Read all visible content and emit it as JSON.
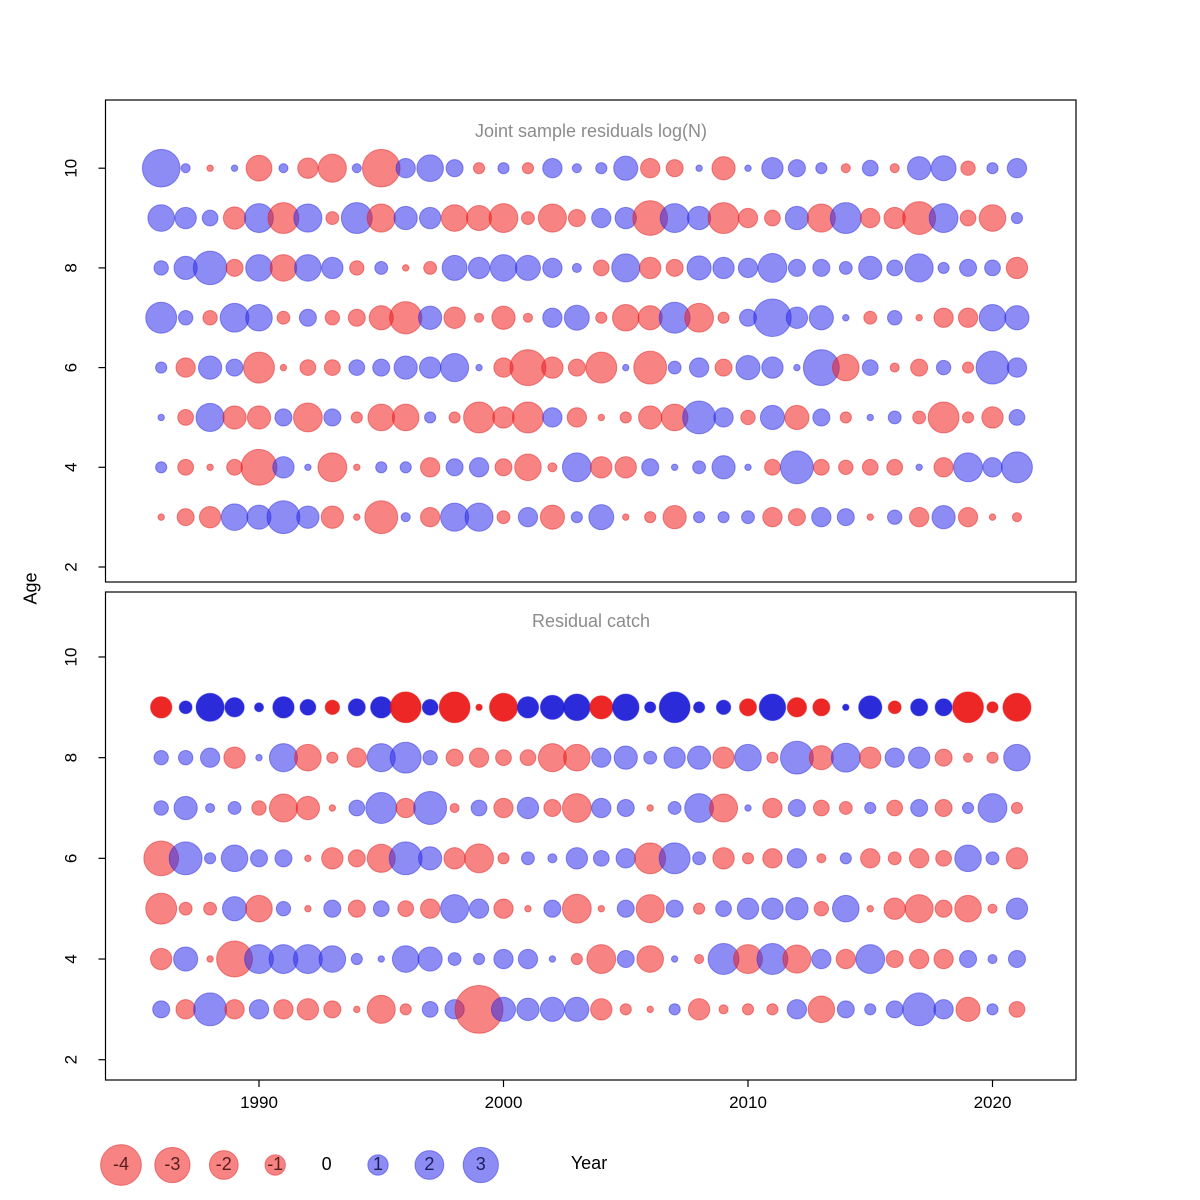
{
  "chart_data": {
    "type": "bubble",
    "description": "Two-panel residual bubble plot by year and age; red = negative residual, blue = positive residual, bubble area proportional to |value|",
    "axes": {
      "xlabel": "Year",
      "ylabel": "Age",
      "x_ticks": [
        1990,
        2000,
        2010,
        2020
      ],
      "y_ticks": [
        2,
        4,
        6,
        8,
        10
      ],
      "xlim": [
        1983.7,
        2023.3
      ],
      "ylim": [
        1.7,
        10.7
      ],
      "grid": false
    },
    "colors": {
      "negative": "rgba(240,30,30,0.55)",
      "positive": "rgba(45,45,235,0.55)",
      "negative_stroke": "rgba(220,20,20,0.45)",
      "positive_stroke": "rgba(30,30,220,0.45)",
      "negative_strong": "rgba(235,20,20,0.92)",
      "positive_strong": "rgba(25,25,215,0.92)",
      "title": "#8c8c8c"
    },
    "legend": {
      "values": [
        -4,
        -3,
        -2,
        -1,
        0,
        1,
        2,
        3
      ],
      "negative_label_color": "#5a1d1d",
      "positive_label_color": "#1d1d5a",
      "zero_label_color": "#000000"
    },
    "panels": [
      {
        "id": "logn",
        "title": "Joint sample residuals log(N)",
        "year_start": 1986,
        "strong_ages": [],
        "series": [
          {
            "age": 10,
            "values": [
              3.4,
              0.2,
              -0.1,
              0.1,
              -1.6,
              0.2,
              -1.0,
              -1.9,
              0.2,
              -3.4,
              0.9,
              1.7,
              0.7,
              -0.3,
              0.3,
              -0.3,
              0.9,
              0.2,
              0.3,
              1.4,
              -0.9,
              -0.7,
              0.1,
              -1.3,
              0.1,
              1.1,
              0.7,
              0.3,
              -0.2,
              0.6,
              -0.2,
              1.3,
              1.5,
              -0.5,
              0.3,
              0.9
            ]
          },
          {
            "age": 9,
            "values": [
              1.7,
              1.1,
              0.6,
              -1.2,
              2.0,
              -2.3,
              1.9,
              -0.4,
              2.3,
              -1.9,
              1.3,
              1.1,
              -1.7,
              -1.5,
              -2.0,
              -0.4,
              -1.9,
              -0.7,
              0.9,
              1.1,
              -2.9,
              2.0,
              1.3,
              -2.3,
              -0.9,
              -0.6,
              1.3,
              -1.9,
              2.3,
              -0.9,
              -1.1,
              -2.6,
              2.0,
              -0.6,
              -1.7,
              0.3
            ]
          },
          {
            "age": 8,
            "values": [
              0.5,
              1.3,
              2.7,
              -0.7,
              1.7,
              -1.7,
              1.7,
              1.1,
              -0.5,
              0.4,
              -0.1,
              -0.4,
              1.5,
              1.1,
              1.7,
              1.5,
              0.9,
              0.2,
              -0.6,
              1.9,
              -1.1,
              -0.7,
              1.4,
              1.1,
              0.9,
              2.0,
              0.7,
              0.7,
              0.4,
              1.3,
              0.6,
              1.9,
              0.3,
              0.7,
              0.6,
              -1.1
            ]
          },
          {
            "age": 7,
            "values": [
              2.3,
              0.5,
              -0.5,
              2.0,
              1.7,
              -0.4,
              0.7,
              -0.5,
              -0.7,
              -1.4,
              -2.5,
              1.3,
              -1.1,
              -0.2,
              -1.3,
              -0.2,
              0.9,
              1.5,
              -0.3,
              -1.7,
              -1.4,
              2.3,
              -2.0,
              -0.3,
              0.7,
              3.4,
              1.1,
              1.4,
              0.1,
              -0.4,
              0.5,
              -0.1,
              -0.9,
              -0.9,
              1.7,
              1.4
            ]
          },
          {
            "age": 6,
            "values": [
              0.3,
              -0.9,
              1.3,
              0.7,
              -2.3,
              -0.1,
              -0.6,
              -0.6,
              0.6,
              0.7,
              1.3,
              1.1,
              1.9,
              0.1,
              -0.9,
              -3.1,
              -1.1,
              -0.7,
              -2.3,
              0.1,
              -2.6,
              0.4,
              0.9,
              -0.7,
              1.4,
              1.1,
              0.1,
              3.1,
              -1.7,
              0.6,
              -0.2,
              -0.7,
              0.5,
              -0.3,
              2.6,
              0.9
            ]
          },
          {
            "age": 5,
            "values": [
              0.1,
              -0.6,
              1.9,
              -1.3,
              -1.3,
              0.7,
              -2.0,
              0.7,
              -0.3,
              -1.7,
              -1.7,
              0.3,
              -0.3,
              -2.3,
              -1.1,
              -2.3,
              0.9,
              -0.9,
              -0.1,
              -0.3,
              -1.3,
              -1.7,
              2.6,
              0.9,
              -0.5,
              1.4,
              -1.4,
              0.7,
              -0.3,
              0.1,
              0.4,
              -0.4,
              -2.3,
              -0.3,
              -1.1,
              0.6
            ]
          },
          {
            "age": 4,
            "values": [
              0.3,
              -0.6,
              -0.1,
              -0.6,
              -3.1,
              1.1,
              0.1,
              -2.0,
              -0.1,
              0.3,
              0.3,
              -0.9,
              0.7,
              0.9,
              -0.7,
              -1.7,
              -0.2,
              2.0,
              -1.1,
              -1.1,
              0.7,
              0.1,
              0.4,
              1.3,
              0.1,
              -0.6,
              2.6,
              -0.6,
              -0.5,
              -0.6,
              -0.6,
              0.1,
              -0.9,
              2.0,
              0.9,
              2.3
            ]
          },
          {
            "age": 3,
            "values": [
              -0.1,
              -0.7,
              -1.1,
              1.7,
              1.4,
              2.6,
              1.2,
              -1.2,
              -0.1,
              -2.6,
              0.2,
              -0.9,
              1.9,
              1.9,
              -0.4,
              0.9,
              -1.4,
              0.3,
              1.5,
              -0.1,
              -0.3,
              -1.3,
              0.3,
              0.3,
              0.4,
              -0.9,
              -0.7,
              0.9,
              0.7,
              -0.1,
              0.5,
              -0.9,
              1.3,
              -0.9,
              -0.1,
              -0.2
            ]
          }
        ]
      },
      {
        "id": "catch",
        "title": "Residual catch",
        "year_start": 1986,
        "strong_ages": [
          9
        ],
        "series": [
          {
            "age": 9,
            "values": [
              -1.1,
              0.4,
              1.9,
              0.9,
              0.2,
              1.1,
              0.6,
              -0.5,
              0.7,
              1.1,
              -2.3,
              0.6,
              -2.3,
              -0.1,
              -1.9,
              1.1,
              1.4,
              1.7,
              -1.3,
              1.7,
              0.3,
              2.3,
              0.3,
              0.5,
              -0.7,
              1.7,
              -0.9,
              -0.7,
              0.1,
              1.3,
              -0.4,
              0.7,
              0.7,
              -2.3,
              -0.3,
              -1.9
            ]
          },
          {
            "age": 8,
            "values": [
              0.5,
              0.5,
              0.9,
              -1.1,
              0.1,
              1.9,
              -1.7,
              -0.3,
              -0.9,
              1.9,
              2.3,
              0.5,
              -0.7,
              -0.9,
              -0.6,
              -0.6,
              -1.9,
              -1.7,
              0.9,
              1.3,
              0.4,
              1.1,
              1.3,
              -1.1,
              1.7,
              -0.3,
              2.6,
              -1.4,
              2.0,
              -1.1,
              0.9,
              1.1,
              -0.7,
              -0.2,
              -0.3,
              1.7
            ]
          },
          {
            "age": 7,
            "values": [
              0.5,
              1.3,
              0.2,
              0.4,
              -0.5,
              -1.9,
              -1.3,
              -0.1,
              0.6,
              2.3,
              -0.9,
              2.6,
              -0.2,
              0.6,
              -0.9,
              1.1,
              -0.7,
              -2.0,
              0.9,
              0.7,
              -0.1,
              0.4,
              2.0,
              -1.9,
              0.1,
              -0.9,
              0.7,
              -0.6,
              -0.4,
              0.3,
              -0.6,
              0.7,
              -0.7,
              0.3,
              2.0,
              -0.3
            ]
          },
          {
            "age": 6,
            "values": [
              -2.9,
              2.6,
              0.3,
              1.7,
              0.7,
              0.7,
              -0.1,
              -1.1,
              -0.7,
              -1.9,
              2.6,
              1.3,
              -1.1,
              -2.0,
              -0.3,
              0.4,
              0.2,
              1.1,
              0.6,
              0.9,
              -2.3,
              2.3,
              0.4,
              -1.1,
              -0.3,
              -0.9,
              0.9,
              -0.2,
              0.3,
              -0.9,
              -0.4,
              -0.9,
              -0.6,
              1.7,
              0.4,
              -1.1
            ]
          },
          {
            "age": 5,
            "values": [
              -2.3,
              -0.4,
              -0.4,
              1.4,
              -1.7,
              0.5,
              -0.1,
              0.7,
              -0.7,
              0.6,
              -0.6,
              -0.9,
              1.9,
              0.9,
              -0.9,
              -0.1,
              0.7,
              -2.0,
              -0.1,
              0.7,
              -1.9,
              0.7,
              -0.3,
              0.6,
              1.1,
              1.1,
              1.2,
              -0.5,
              1.7,
              -0.1,
              -1.1,
              -1.9,
              -0.7,
              -1.7,
              -0.2,
              1.1
            ]
          },
          {
            "age": 4,
            "values": [
              -1.1,
              1.4,
              -0.1,
              -3.1,
              2.0,
              2.0,
              2.0,
              1.7,
              0.3,
              0.1,
              1.7,
              1.4,
              0.4,
              0.3,
              0.9,
              0.9,
              0.1,
              -0.3,
              -2.0,
              0.7,
              -1.7,
              0.1,
              -0.2,
              2.3,
              -2.0,
              2.3,
              -1.9,
              0.9,
              -0.9,
              2.0,
              -0.7,
              -0.9,
              -0.9,
              0.7,
              0.2,
              0.7
            ]
          },
          {
            "age": 3,
            "values": [
              0.7,
              -0.9,
              2.6,
              -0.9,
              0.9,
              -0.9,
              -1.1,
              -0.7,
              -0.1,
              -1.9,
              -0.3,
              0.6,
              0.9,
              -5.5,
              1.4,
              1.2,
              1.4,
              1.4,
              -1.1,
              -0.3,
              -0.1,
              0.3,
              -1.1,
              -0.2,
              -0.3,
              -0.3,
              0.9,
              -1.7,
              0.7,
              0.3,
              0.7,
              2.6,
              0.9,
              -1.4,
              0.3,
              -0.6
            ]
          }
        ]
      }
    ]
  }
}
